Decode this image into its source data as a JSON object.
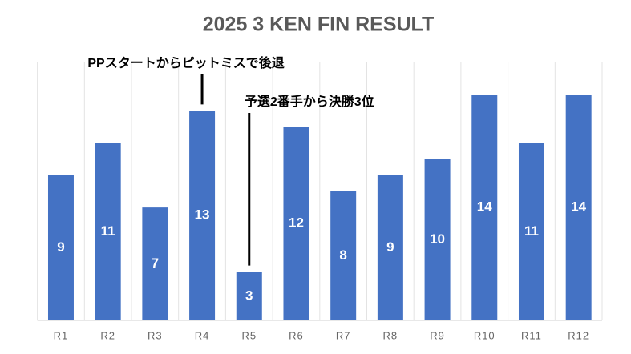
{
  "chart_data": {
    "type": "bar",
    "title": "2025 3 KEN FIN RESULT",
    "categories": [
      "R1",
      "R2",
      "R3",
      "R4",
      "R5",
      "R6",
      "R7",
      "R8",
      "R9",
      "R10",
      "R11",
      "R12"
    ],
    "values": [
      9,
      11,
      7,
      13,
      3,
      12,
      8,
      9,
      10,
      14,
      11,
      14
    ],
    "color": "#4472c4",
    "ylim": [
      0,
      16
    ],
    "grid": true,
    "annotations": [
      {
        "text": "PPスタートからピットミスで後退",
        "category": "R4"
      },
      {
        "text": "予選2番手から決勝3位",
        "category": "R5"
      }
    ]
  }
}
